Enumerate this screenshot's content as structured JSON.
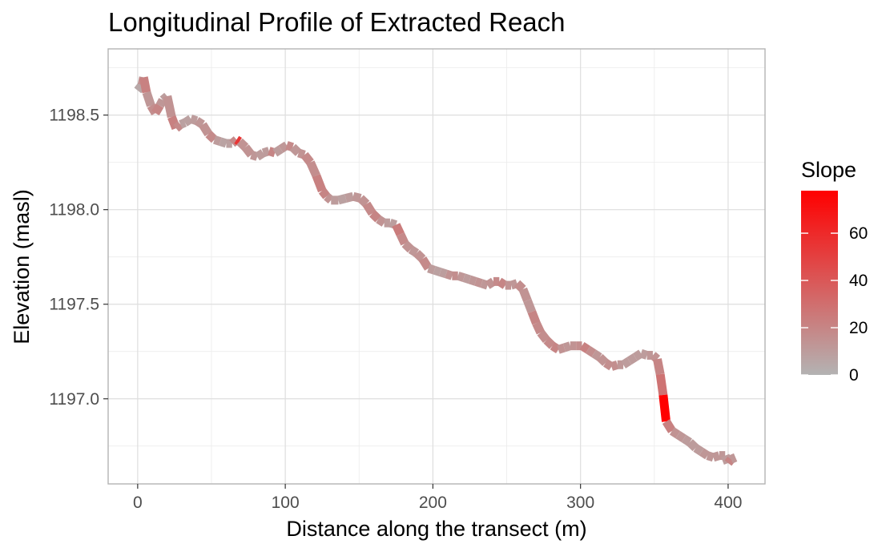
{
  "chart_data": {
    "type": "line",
    "title": "Longitudinal Profile of Extracted Reach",
    "xlabel": "Distance along the transect (m)",
    "ylabel": "Elevation (masl)",
    "xlim": [
      -20,
      425
    ],
    "ylim": [
      1196.55,
      1198.85
    ],
    "x_ticks": [
      0,
      100,
      200,
      300,
      400
    ],
    "y_ticks": [
      1197.0,
      1197.5,
      1198.0,
      1198.5
    ],
    "x_tick_labels": [
      "0",
      "100",
      "200",
      "300",
      "400"
    ],
    "y_tick_labels": [
      "1197.0",
      "1197.5",
      "1198.0",
      "1198.5"
    ],
    "grid": true,
    "legend": {
      "title": "Slope",
      "position": "right",
      "min": 0,
      "max": 78,
      "ticks": [
        0,
        20,
        40,
        60
      ],
      "tick_labels": [
        "0",
        "20",
        "40",
        "60"
      ],
      "low_color": "#b3b3b3",
      "high_color": "#ff0000"
    },
    "series": [
      {
        "x": [
          0,
          3,
          4,
          6,
          9,
          12,
          15,
          17,
          20,
          23,
          26,
          29,
          32,
          36,
          40,
          44,
          48,
          52,
          56,
          60,
          64,
          67,
          69,
          73,
          77,
          81,
          85,
          89,
          93,
          97,
          101,
          105,
          109,
          113,
          117,
          121,
          125,
          128,
          131,
          136,
          141,
          146,
          151,
          155,
          159,
          163,
          167,
          171,
          175,
          178,
          181,
          185,
          189,
          193,
          197,
          201,
          205,
          209,
          213,
          217,
          221,
          225,
          229,
          233,
          237,
          241,
          245,
          249,
          253,
          257,
          261,
          264,
          267,
          270,
          273,
          277,
          281,
          285,
          289,
          293,
          297,
          301,
          305,
          309,
          313,
          317,
          321,
          325,
          329,
          333,
          337,
          341,
          345,
          349,
          352,
          354,
          356,
          358,
          362,
          366,
          370,
          374,
          378,
          382,
          386,
          390,
          394,
          398,
          400,
          402,
          405
        ],
        "y": [
          1198.63,
          1198.66,
          1198.7,
          1198.62,
          1198.55,
          1198.51,
          1198.55,
          1198.58,
          1198.6,
          1198.49,
          1198.43,
          1198.45,
          1198.46,
          1198.48,
          1198.47,
          1198.45,
          1198.4,
          1198.37,
          1198.36,
          1198.35,
          1198.35,
          1198.37,
          1198.36,
          1198.33,
          1198.29,
          1198.28,
          1198.3,
          1198.31,
          1198.3,
          1198.32,
          1198.34,
          1198.33,
          1198.3,
          1198.29,
          1198.25,
          1198.18,
          1198.1,
          1198.07,
          1198.05,
          1198.05,
          1198.06,
          1198.07,
          1198.06,
          1198.03,
          1197.98,
          1197.95,
          1197.93,
          1197.93,
          1197.92,
          1197.87,
          1197.82,
          1197.79,
          1197.77,
          1197.74,
          1197.69,
          1197.68,
          1197.67,
          1197.66,
          1197.65,
          1197.65,
          1197.64,
          1197.63,
          1197.62,
          1197.61,
          1197.6,
          1197.62,
          1197.62,
          1197.6,
          1197.6,
          1197.61,
          1197.58,
          1197.52,
          1197.46,
          1197.4,
          1197.35,
          1197.31,
          1197.28,
          1197.26,
          1197.27,
          1197.28,
          1197.28,
          1197.28,
          1197.26,
          1197.24,
          1197.22,
          1197.19,
          1197.17,
          1197.18,
          1197.18,
          1197.2,
          1197.22,
          1197.24,
          1197.23,
          1197.23,
          1197.21,
          1197.13,
          1197.02,
          1196.88,
          1196.83,
          1196.81,
          1196.79,
          1196.77,
          1196.74,
          1196.72,
          1196.7,
          1196.69,
          1196.7,
          1196.7,
          1196.66,
          1196.68,
          1196.69
        ],
        "slope": [
          5,
          14,
          22,
          12,
          16,
          20,
          12,
          9,
          14,
          22,
          18,
          8,
          8,
          10,
          12,
          14,
          18,
          10,
          7,
          8,
          18,
          55,
          14,
          14,
          12,
          10,
          10,
          20,
          10,
          12,
          18,
          12,
          14,
          18,
          16,
          22,
          20,
          14,
          10,
          8,
          10,
          12,
          14,
          18,
          20,
          14,
          10,
          9,
          24,
          18,
          14,
          12,
          14,
          18,
          10,
          8,
          9,
          14,
          16,
          12,
          10,
          12,
          14,
          12,
          14,
          18,
          20,
          14,
          12,
          16,
          14,
          12,
          20,
          18,
          16,
          18,
          20,
          14,
          12,
          14,
          16,
          22,
          16,
          12,
          14,
          16,
          16,
          12,
          10,
          10,
          10,
          10,
          12,
          14,
          20,
          28,
          78,
          22,
          14,
          12,
          10,
          10,
          10,
          12,
          12,
          12,
          12,
          10,
          20,
          12,
          8
        ]
      }
    ]
  }
}
